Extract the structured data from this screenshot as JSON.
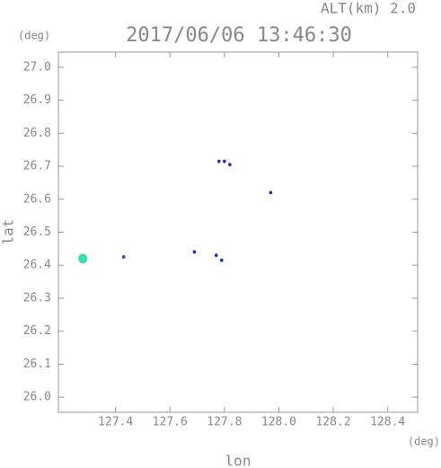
{
  "chart_data": {
    "type": "scatter",
    "title": "2017/06/06 13:46:30",
    "subtitle": "ALT(km) 2.0",
    "y_unit": "(deg)",
    "x_unit": "(deg)",
    "x_label": "lon",
    "y_label": "lat",
    "x": [
      127.28,
      127.43,
      127.69,
      127.77,
      127.79,
      127.78,
      127.8,
      127.82,
      127.97
    ],
    "y": [
      26.42,
      26.425,
      26.44,
      26.43,
      26.415,
      26.715,
      26.715,
      26.705,
      26.62
    ],
    "colors": [
      "#33e0b0",
      "#3050d8",
      "#2030b0",
      "#2030b0",
      "#2030b0",
      "#2030b0",
      "#2030b0",
      "#2030b0",
      "#2030b0"
    ],
    "xlim": [
      127.19,
      128.51
    ],
    "ylim": [
      25.954,
      27.046
    ],
    "xticks": [
      127.4,
      127.6,
      127.8,
      {
        "value": 128.0,
        "label": "128.0"
      },
      128.2,
      128.4
    ],
    "yticks": [
      {
        "value": 26.0,
        "label": "26.0"
      },
      26.1,
      26.2,
      26.3,
      26.4,
      26.5,
      26.6,
      26.7,
      26.8,
      26.9,
      {
        "value": 27.0,
        "label": "27.0"
      }
    ]
  }
}
